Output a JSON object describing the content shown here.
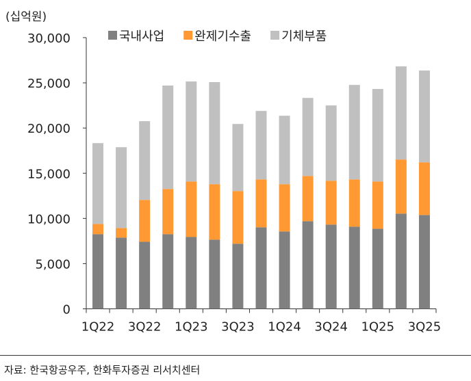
{
  "unit_label": "(십억원)",
  "source": "자료: 한국항공우주, 한화투자증권 리서치센터",
  "chart_data": {
    "type": "bar",
    "stacked": true,
    "categories": [
      "1Q22",
      "2Q22",
      "3Q22",
      "4Q22",
      "1Q23",
      "2Q23",
      "3Q23",
      "4Q23",
      "1Q24",
      "2Q24",
      "3Q24",
      "4Q24",
      "1Q25",
      "2Q25",
      "3Q25"
    ],
    "tick_labels": [
      "1Q22",
      "3Q22",
      "1Q23",
      "3Q23",
      "1Q24",
      "3Q24",
      "1Q25",
      "3Q25"
    ],
    "yticks": [
      "0",
      "5,000",
      "10,000",
      "15,000",
      "20,000",
      "25,000",
      "30,000"
    ],
    "ylim": [
      0,
      30000
    ],
    "legend": "top",
    "grid": false,
    "series": [
      {
        "name": "국내사업",
        "color": "#808080",
        "values": [
          8260,
          7880,
          7420,
          8260,
          7950,
          7650,
          7200,
          9020,
          8560,
          9700,
          9320,
          9090,
          8860,
          10530,
          10380
        ]
      },
      {
        "name": "완제기수출",
        "color": "#FF9933",
        "values": [
          1130,
          1060,
          4630,
          5000,
          6140,
          6140,
          5830,
          5300,
          5230,
          5000,
          4850,
          5230,
          5230,
          5990,
          5830
        ]
      },
      {
        "name": "기체부품",
        "color": "#C0C0C0",
        "values": [
          8940,
          8940,
          8710,
          11440,
          11060,
          11290,
          7420,
          7570,
          7570,
          8630,
          8330,
          10450,
          10230,
          10300,
          10150
        ]
      }
    ]
  }
}
